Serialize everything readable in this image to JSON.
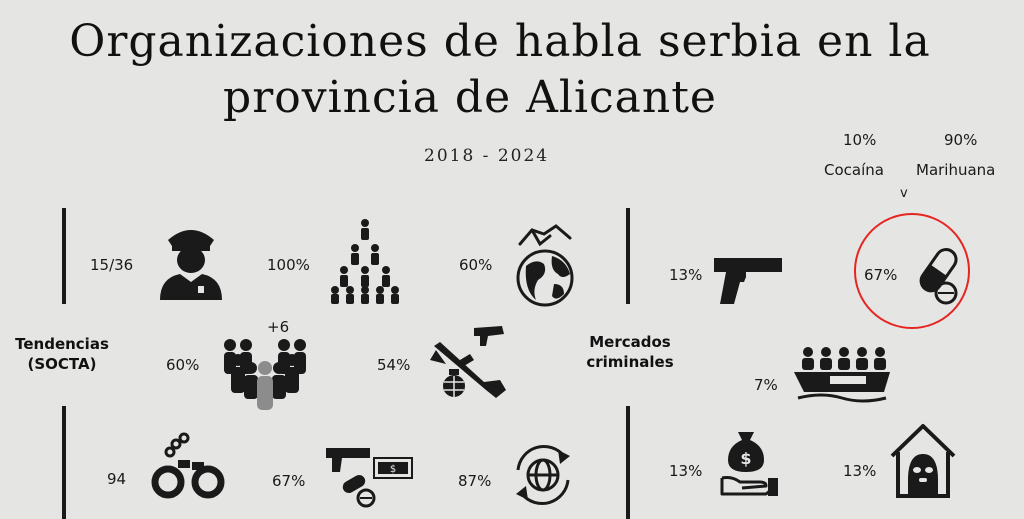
{
  "title": {
    "line1": "Organizaciones de habla serbia en la",
    "line2": "provincia de Alicante"
  },
  "subtitle": "2018 - 2024",
  "left_section": {
    "label_line1": "Tendencias",
    "label_line2": "(SOCTA)",
    "items": {
      "police_value": "15/36",
      "hierarchy_value": "100%",
      "globe_handshake_value": "60%",
      "group_extra": "+6",
      "group_value": "60%",
      "weapons_value": "54%",
      "handcuffs_value": "94",
      "drugs_money_value": "67%",
      "globe_cycle_value": "87%"
    }
  },
  "right_section": {
    "label_line1": "Mercados",
    "label_line2": "criminales",
    "items": {
      "pistol_value": "13%",
      "pills_value": "67%",
      "cocaine_pct": "10%",
      "cocaine_label": "Cocaína",
      "marihuana_pct": "90%",
      "marihuana_label": "Marihuana",
      "arrow_mark": "v",
      "boat_value": "7%",
      "money_hand_value": "13%",
      "house_value": "13%"
    }
  },
  "colors": {
    "background": "#e5e5e3",
    "ink": "#1a1a1a",
    "highlight_ring": "#e52521",
    "group_gray": "#8c8c8c"
  }
}
